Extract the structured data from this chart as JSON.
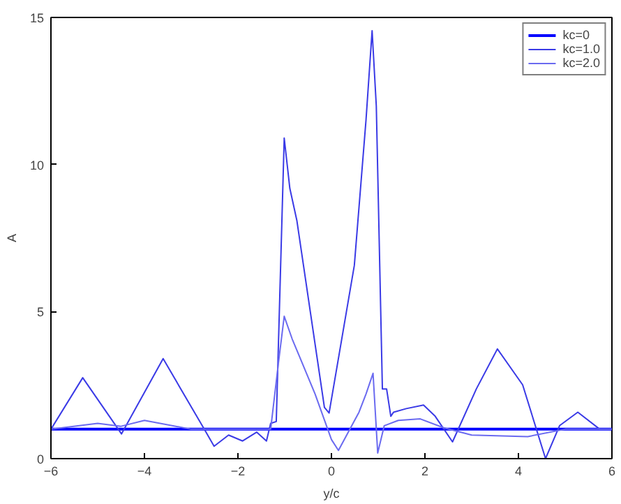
{
  "chart_data": {
    "type": "line",
    "xlabel": "y/c",
    "ylabel": "A",
    "xlim": [
      -6,
      6
    ],
    "ylim": [
      0,
      15
    ],
    "xticks": [
      -6,
      -4,
      -2,
      0,
      2,
      4,
      6
    ],
    "yticks": [
      0,
      5,
      10,
      15
    ],
    "grid": false,
    "legend": "top right",
    "marker": "none",
    "series": [
      {
        "name": "kc=0",
        "color": "#0000ff",
        "x": [
          -6,
          6
        ],
        "values": [
          1.0,
          1.0
        ]
      },
      {
        "name": "kc=1.0",
        "color": "#3a3ae6",
        "x": [
          -6,
          -5.32,
          -4.49,
          -3.6,
          -2.72,
          -2.51,
          -2.2,
          -1.9,
          -1.6,
          -1.39,
          -1.3,
          -1.18,
          -1.01,
          -0.89,
          -0.74,
          -0.15,
          -0.05,
          0.49,
          0.74,
          0.87,
          0.96,
          1.09,
          1.18,
          1.27,
          1.33,
          1.6,
          1.97,
          2.22,
          2.59,
          3.1,
          3.55,
          4.09,
          4.58,
          4.88,
          5.27,
          5.74,
          6
        ],
        "values": [
          1.0,
          2.75,
          0.84,
          3.4,
          1.0,
          0.42,
          0.8,
          0.6,
          0.9,
          0.6,
          1.2,
          1.26,
          10.9,
          9.19,
          8.1,
          1.74,
          1.55,
          6.57,
          11.52,
          14.55,
          11.98,
          2.37,
          2.37,
          1.44,
          1.58,
          1.7,
          1.82,
          1.44,
          0.57,
          2.37,
          3.73,
          2.51,
          0.0,
          1.12,
          1.58,
          1.0,
          1.0
        ]
      },
      {
        "name": "kc=2.0",
        "color": "#6a6af0",
        "x": [
          -6,
          -5,
          -4.5,
          -4,
          -3,
          -2,
          -1.3,
          -1.13,
          -1.01,
          -0.84,
          -0.35,
          0.0,
          0.15,
          0.59,
          0.74,
          0.89,
          0.99,
          1.13,
          1.43,
          1.9,
          2.4,
          3.0,
          4.2,
          5,
          6
        ],
        "values": [
          1.0,
          1.2,
          1.1,
          1.3,
          1.0,
          1.0,
          1.0,
          3.3,
          4.84,
          4.07,
          2.2,
          0.65,
          0.28,
          1.58,
          2.2,
          2.9,
          0.19,
          1.12,
          1.3,
          1.35,
          1.05,
          0.8,
          0.75,
          1.0,
          1.0
        ]
      }
    ]
  }
}
